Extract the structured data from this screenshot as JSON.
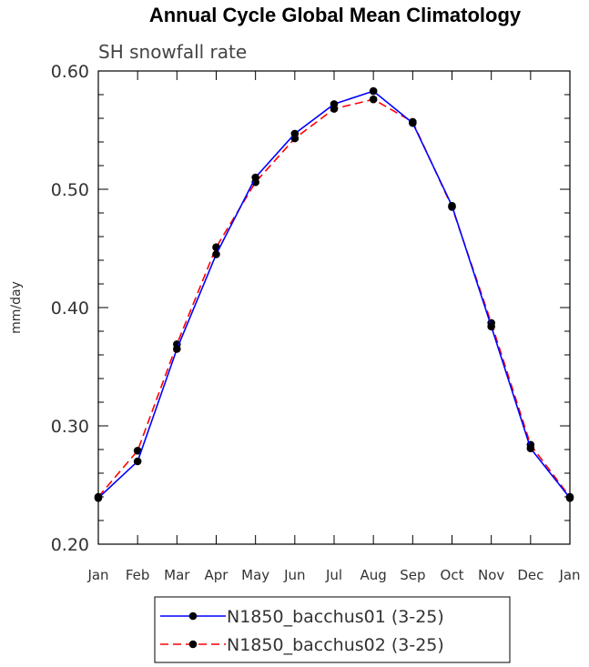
{
  "chart_data": {
    "type": "line",
    "title": "Annual Cycle Global Mean Climatology",
    "subtitle": "SH snowfall rate",
    "xlabel": "",
    "ylabel": "mm/day",
    "categories": [
      "Jan",
      "Feb",
      "Mar",
      "Apr",
      "May",
      "Jun",
      "Jul",
      "Aug",
      "Sep",
      "Oct",
      "Nov",
      "Dec",
      "Jan"
    ],
    "ylim": [
      0.2,
      0.6
    ],
    "yticks": [
      "0.20",
      "0.30",
      "0.40",
      "0.50",
      "0.60"
    ],
    "series": [
      {
        "name": "N1850_bacchus01 (3-25)",
        "color": "#0000ff",
        "style": "solid",
        "values": [
          0.239,
          0.27,
          0.365,
          0.445,
          0.51,
          0.547,
          0.572,
          0.583,
          0.556,
          0.486,
          0.384,
          0.281,
          0.239
        ]
      },
      {
        "name": "N1850_bacchus02 (3-25)",
        "color": "#ff0000",
        "style": "dashed",
        "values": [
          0.24,
          0.279,
          0.369,
          0.451,
          0.506,
          0.543,
          0.568,
          0.576,
          0.557,
          0.485,
          0.387,
          0.284,
          0.24
        ]
      }
    ],
    "grid": false,
    "legend_position": "bottom-center"
  }
}
